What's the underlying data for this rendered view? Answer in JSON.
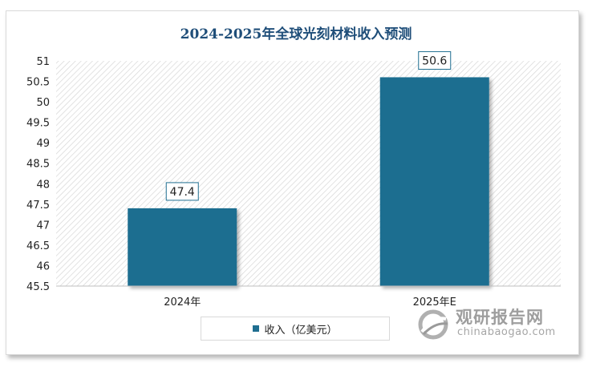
{
  "chart_data": {
    "type": "bar",
    "title": "2024-2025年全球光刻材料收入预测",
    "categories": [
      "2024年",
      "2025年E"
    ],
    "series": [
      {
        "name": "收入（亿美元）",
        "values": [
          47.4,
          50.6
        ],
        "data_labels": [
          "47.4",
          "50.6"
        ]
      }
    ],
    "ylim": [
      45.5,
      51
    ],
    "yticks": [
      "45.5",
      "46",
      "46.5",
      "47",
      "47.5",
      "48",
      "48.5",
      "49",
      "49.5",
      "50",
      "50.5",
      "51"
    ],
    "xlabel": "",
    "ylabel": "",
    "grid": false,
    "legend_position": "bottom",
    "colors": {
      "bar": "#1f6e90",
      "title": "#1f4e79",
      "hatch": "#d4d4d4"
    }
  },
  "watermark": {
    "name_cn": "观研报告网",
    "url": "chinabaogao.com",
    "icon": "globe-logo-icon"
  }
}
